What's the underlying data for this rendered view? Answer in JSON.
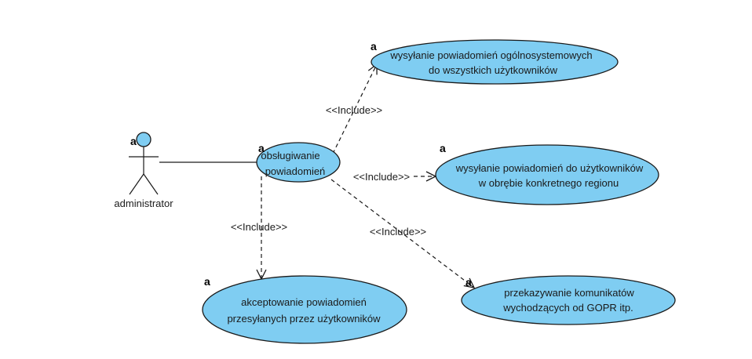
{
  "diagram": {
    "type": "uml-use-case",
    "colors": {
      "usecase_fill": "#7fcdf2",
      "line": "#1a1a1a",
      "background": "#ffffff"
    },
    "actor": {
      "name": "administrator",
      "marker": "a"
    },
    "use_cases": {
      "main": {
        "lines": [
          "obsługiwanie",
          "powiadomień"
        ],
        "marker": "a"
      },
      "system_wide": {
        "lines": [
          "wysyłanie powiadomień ogólnosystemowych",
          "do wszystkich użytkowników"
        ],
        "marker": "a"
      },
      "regional": {
        "lines": [
          "wysyłanie powiadomień do użytkowników",
          "w obrębie konkretnego regionu"
        ],
        "marker": "a"
      },
      "accept": {
        "lines": [
          "akceptowanie powiadomień",
          "przesyłanych przez użytkowników"
        ],
        "marker": "a"
      },
      "gopr": {
        "lines": [
          "przekazywanie komunikatów",
          "wychodzących od GOPR itp."
        ],
        "marker": "a"
      }
    },
    "relations": {
      "include_system_wide": "<<Include>>",
      "include_regional": "<<Include>>",
      "include_accept": "<<Include>>",
      "include_gopr": "<<Include>>"
    }
  }
}
